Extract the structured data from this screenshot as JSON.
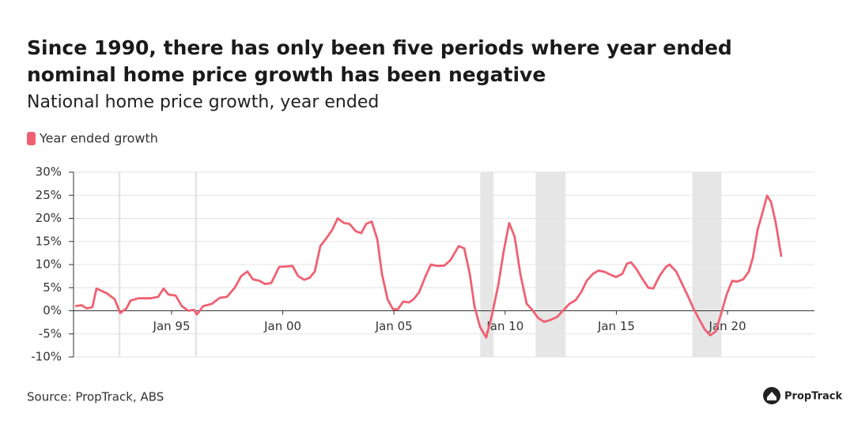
{
  "chart_data": {
    "type": "line",
    "title": "Since 1990, there has only been five periods where year ended nominal home price growth has been negative",
    "title_lines": [
      "Since 1990, there has only been five periods where year ended",
      "nominal home price growth has been negative"
    ],
    "subtitle": "National home price growth, year ended",
    "source": "Source: PropTrack, ABS",
    "logo": "PropTrack",
    "x": [
      1990.66,
      1990.95,
      1991.19,
      1991.44,
      1991.62,
      1992.08,
      1992.44,
      1992.69,
      1992.97,
      1993.15,
      1993.51,
      1994.04,
      1994.4,
      1994.64,
      1994.86,
      1995.18,
      1995.46,
      1995.75,
      1996.0,
      1996.14,
      1996.42,
      1996.81,
      1997.17,
      1997.49,
      1997.84,
      1998.13,
      1998.41,
      1998.66,
      1998.95,
      1999.2,
      1999.48,
      1999.84,
      2000.16,
      2000.44,
      2000.69,
      2000.97,
      2001.22,
      2001.44,
      2001.69,
      2001.93,
      2002.22,
      2002.47,
      2002.75,
      2003.0,
      2003.29,
      2003.53,
      2003.75,
      2004.0,
      2004.25,
      2004.46,
      2004.71,
      2004.96,
      2005.17,
      2005.42,
      2005.67,
      2005.88,
      2006.13,
      2006.42,
      2006.66,
      2006.95,
      2007.27,
      2007.55,
      2007.91,
      2008.16,
      2008.41,
      2008.62,
      2008.87,
      2009.15,
      2009.4,
      2009.69,
      2009.94,
      2010.18,
      2010.43,
      2010.68,
      2010.97,
      2011.22,
      2011.47,
      2011.75,
      2012.03,
      2012.35,
      2012.6,
      2012.89,
      2013.17,
      2013.42,
      2013.67,
      2013.95,
      2014.2,
      2014.49,
      2014.74,
      2014.99,
      2015.27,
      2015.48,
      2015.66,
      2015.91,
      2016.16,
      2016.44,
      2016.66,
      2016.94,
      2017.23,
      2017.4,
      2017.69,
      2017.94,
      2018.19,
      2018.47,
      2018.72,
      2018.97,
      2019.22,
      2019.47,
      2019.72,
      2019.96,
      2020.21,
      2020.43,
      2020.71,
      2020.96,
      2021.14,
      2021.35,
      2021.53,
      2021.78,
      2021.96,
      2022.17,
      2022.42
    ],
    "series": [
      {
        "name": "Year ended growth",
        "color": "#ef6172",
        "values": [
          1,
          1.2,
          0.5,
          0.8,
          4.8,
          3.8,
          2.5,
          -0.5,
          0.5,
          2.2,
          2.7,
          2.7,
          3,
          4.8,
          3.5,
          3.3,
          1,
          0,
          0.2,
          -0.8,
          1,
          1.5,
          2.8,
          3,
          5,
          7.5,
          8.5,
          6.8,
          6.5,
          5.8,
          6,
          9.5,
          9.6,
          9.7,
          7.5,
          6.7,
          7.2,
          8.5,
          14,
          15.5,
          17.5,
          20,
          19,
          18.8,
          17.2,
          16.8,
          18.8,
          19.3,
          15.5,
          8,
          2.5,
          0.3,
          0.3,
          2,
          1.8,
          2.5,
          4,
          7.5,
          10,
          9.7,
          9.8,
          11,
          14,
          13.5,
          8,
          1,
          -3.5,
          -5.8,
          -1,
          5.5,
          13,
          19,
          16,
          8,
          1.5,
          0.2,
          -1.5,
          -2.4,
          -2,
          -1.3,
          0,
          1.5,
          2.3,
          4,
          6.5,
          8,
          8.7,
          8.4,
          7.8,
          7.3,
          8,
          10.2,
          10.5,
          9,
          7,
          5,
          4.8,
          7.5,
          9.5,
          10,
          8.5,
          6,
          3.5,
          0.5,
          -1.8,
          -4,
          -5.3,
          -4.5,
          -0.5,
          3.5,
          6.5,
          6.3,
          6.8,
          8.5,
          11.5,
          17.5,
          20.5,
          24.9,
          23.5,
          19,
          11.7
        ]
      }
    ],
    "shaded_periods": [
      [
        1992.6,
        1992.7
      ],
      [
        1996.05,
        1996.15
      ],
      [
        2008.88,
        2009.48
      ],
      [
        2011.37,
        2012.72
      ],
      [
        2018.42,
        2019.73
      ]
    ],
    "xlim": [
      1990.59,
      2023.91
    ],
    "xticks": [
      {
        "value": 1995,
        "label": "Jan 95"
      },
      {
        "value": 2000,
        "label": "Jan 00"
      },
      {
        "value": 2005,
        "label": "Jan 05"
      },
      {
        "value": 2010,
        "label": "Jan 10"
      },
      {
        "value": 2015,
        "label": "Jan 15"
      },
      {
        "value": 2020,
        "label": "Jan 20"
      }
    ],
    "ylim": [
      -10,
      30
    ],
    "yticks": [
      {
        "value": 30,
        "label": "30%"
      },
      {
        "value": 25,
        "label": "25%"
      },
      {
        "value": 20,
        "label": "20%"
      },
      {
        "value": 15,
        "label": "15%"
      },
      {
        "value": 10,
        "label": "10%"
      },
      {
        "value": 5,
        "label": "5%"
      },
      {
        "value": 0,
        "label": "0%"
      },
      {
        "value": -5,
        "label": "-5%"
      },
      {
        "value": -10,
        "label": "-10%"
      }
    ],
    "grid": true
  }
}
